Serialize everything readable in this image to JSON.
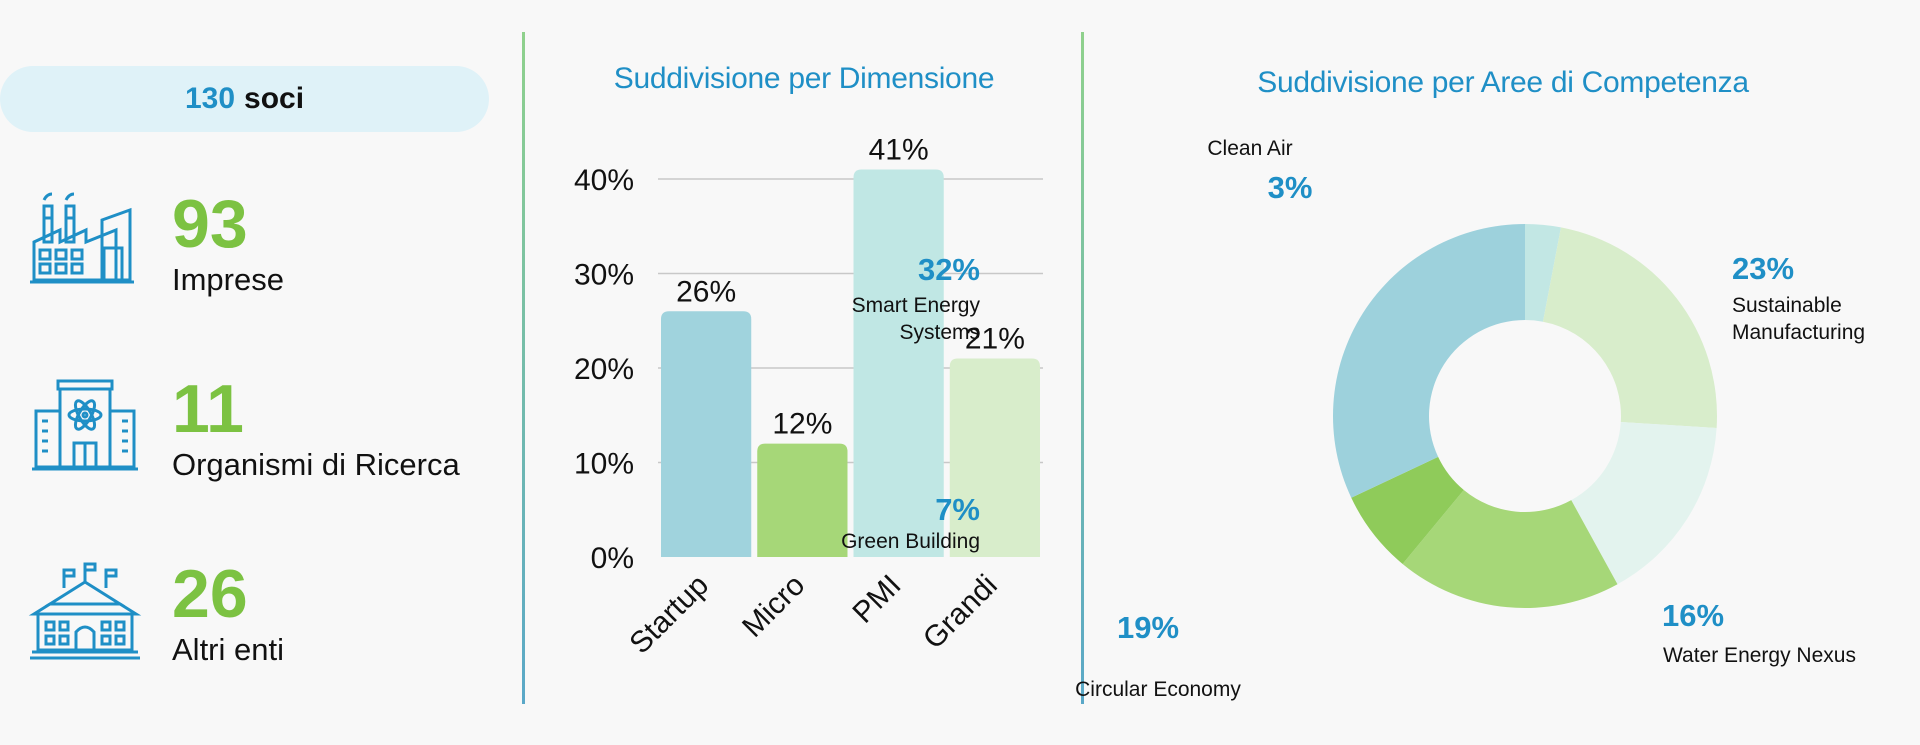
{
  "summary": {
    "total_number": "130",
    "total_label": "soci",
    "stats": [
      {
        "value": "93",
        "label": "Imprese",
        "icon": "factory-icon"
      },
      {
        "value": "11",
        "label": "Organismi di Ricerca",
        "icon": "research-building-icon"
      },
      {
        "value": "26",
        "label": "Altri enti",
        "icon": "institution-building-icon"
      }
    ]
  },
  "colors": {
    "accent_blue": "#1f8fc6",
    "accent_green": "#7cc242",
    "pill_bg": "#dff2f8"
  },
  "chart_data": [
    {
      "type": "bar",
      "title": "Suddivisione per Dimensione",
      "categories": [
        "Startup",
        "Micro",
        "PMI",
        "Grandi"
      ],
      "values": [
        26,
        12,
        41,
        21
      ],
      "value_labels": [
        "26%",
        "12%",
        "41%",
        "21%"
      ],
      "colors": [
        "#a0d3dd",
        "#a6d778",
        "#c0e7e4",
        "#d8edcb"
      ],
      "yticks": [
        0,
        10,
        20,
        30,
        40
      ],
      "ytick_labels": [
        "0%",
        "10%",
        "20%",
        "30%",
        "40%"
      ],
      "ylim": [
        0,
        40
      ],
      "grid": true
    },
    {
      "type": "pie",
      "donut": true,
      "title": "Suddivisione per Aree di Competenza",
      "slices": [
        {
          "label": "Clean Air",
          "value": 3,
          "pct": "3%",
          "color": "#c2e7e4"
        },
        {
          "label": "Sustainable Manufacturing",
          "value": 23,
          "pct": "23%",
          "color": "#d8edcb"
        },
        {
          "label": "Water Energy Nexus",
          "value": 16,
          "pct": "16%",
          "color": "#e3f3ee"
        },
        {
          "label": "Circular Economy",
          "value": 19,
          "pct": "19%",
          "color": "#a6d778"
        },
        {
          "label": "Green Building",
          "value": 7,
          "pct": "7%",
          "color": "#8fcb5a"
        },
        {
          "label": "Smart Energy Systems",
          "value": 32,
          "pct": "32%",
          "color": "#9dd1dc"
        }
      ]
    }
  ]
}
